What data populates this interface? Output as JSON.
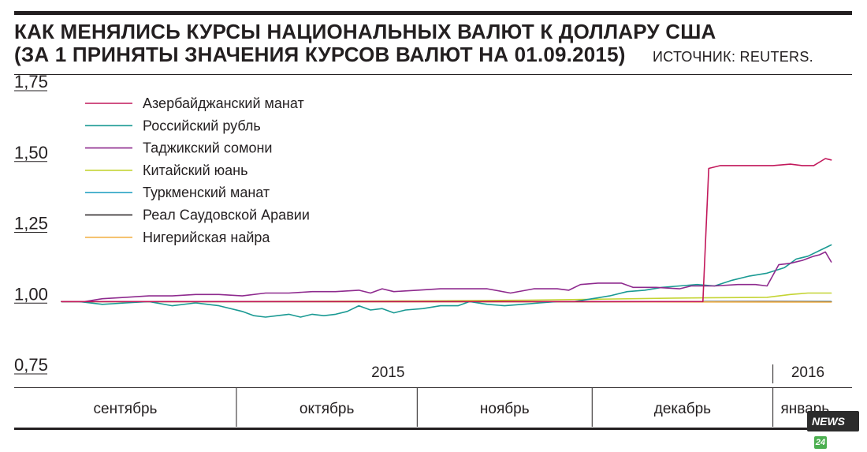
{
  "header": {
    "title_line1": "КАК МЕНЯЛИСЬ КУРСЫ НАЦИОНАЛЬНЫХ ВАЛЮТ К ДОЛЛАРУ США",
    "title_line2": "(ЗА 1 ПРИНЯТЫ ЗНАЧЕНИЯ КУРСОВ ВАЛЮТ НА 01.09.2015)",
    "source": "ИСТОЧНИК: REUTERS."
  },
  "brand": {
    "text": "NEWS",
    "mark": "24"
  },
  "chart_data": {
    "type": "line",
    "title": "КАК МЕНЯЛИСЬ КУРСЫ НАЦИОНАЛЬНЫХ ВАЛЮТ К ДОЛЛАРУ США",
    "subtitle": "(ЗА 1 ПРИНЯТЫ ЗНАЧЕНИЯ КУРСОВ ВАЛЮТ НА 01.09.2015)",
    "ylim": [
      0.75,
      1.75
    ],
    "y_ticks": [
      "1,75",
      "1,50",
      "1,25",
      "1,00",
      "0,75"
    ],
    "y_tick_values": [
      1.75,
      1.5,
      1.25,
      1.0,
      0.75
    ],
    "x_range": [
      "2015-09-01",
      "2016-01-12"
    ],
    "year_labels": [
      {
        "label": "2015",
        "date": "2015-10-27"
      },
      {
        "label": "2016",
        "date": "2016-01-07"
      }
    ],
    "year_divider_date": "2016-01-01",
    "months": [
      {
        "label": "сентябрь",
        "start": "2015-09-01",
        "end": "2015-10-01"
      },
      {
        "label": "октябрь",
        "start": "2015-10-01",
        "end": "2015-11-01"
      },
      {
        "label": "ноябрь",
        "start": "2015-11-01",
        "end": "2015-12-01"
      },
      {
        "label": "декабрь",
        "start": "2015-12-01",
        "end": "2016-01-01"
      },
      {
        "label": "январь",
        "start": "2016-01-01",
        "end": "2016-01-12"
      }
    ],
    "grid": false,
    "legend_position": "top-left",
    "series": [
      {
        "name": "Азербайджанский манат",
        "color": "#c2185b",
        "points": [
          [
            "2015-09-01",
            1.0
          ],
          [
            "2015-10-01",
            1.0
          ],
          [
            "2015-11-01",
            1.0
          ],
          [
            "2015-12-01",
            1.0
          ],
          [
            "2015-12-20",
            1.0
          ],
          [
            "2015-12-21",
            1.47
          ],
          [
            "2015-12-23",
            1.48
          ],
          [
            "2015-12-28",
            1.48
          ],
          [
            "2016-01-01",
            1.48
          ],
          [
            "2016-01-04",
            1.485
          ],
          [
            "2016-01-06",
            1.48
          ],
          [
            "2016-01-08",
            1.48
          ],
          [
            "2016-01-10",
            1.505
          ],
          [
            "2016-01-11",
            1.5
          ]
        ]
      },
      {
        "name": "Российский рубль",
        "color": "#1a9a93",
        "points": [
          [
            "2015-09-01",
            1.0
          ],
          [
            "2015-09-04",
            1.0
          ],
          [
            "2015-09-08",
            0.99
          ],
          [
            "2015-09-12",
            0.995
          ],
          [
            "2015-09-16",
            1.0
          ],
          [
            "2015-09-20",
            0.985
          ],
          [
            "2015-09-24",
            0.995
          ],
          [
            "2015-09-28",
            0.985
          ],
          [
            "2015-10-02",
            0.965
          ],
          [
            "2015-10-04",
            0.95
          ],
          [
            "2015-10-06",
            0.945
          ],
          [
            "2015-10-08",
            0.95
          ],
          [
            "2015-10-10",
            0.955
          ],
          [
            "2015-10-12",
            0.945
          ],
          [
            "2015-10-14",
            0.955
          ],
          [
            "2015-10-16",
            0.95
          ],
          [
            "2015-10-18",
            0.955
          ],
          [
            "2015-10-20",
            0.965
          ],
          [
            "2015-10-22",
            0.985
          ],
          [
            "2015-10-24",
            0.97
          ],
          [
            "2015-10-26",
            0.975
          ],
          [
            "2015-10-28",
            0.96
          ],
          [
            "2015-10-30",
            0.97
          ],
          [
            "2015-11-02",
            0.975
          ],
          [
            "2015-11-05",
            0.985
          ],
          [
            "2015-11-08",
            0.985
          ],
          [
            "2015-11-10",
            1.0
          ],
          [
            "2015-11-13",
            0.99
          ],
          [
            "2015-11-16",
            0.985
          ],
          [
            "2015-11-19",
            0.99
          ],
          [
            "2015-11-22",
            0.995
          ],
          [
            "2015-11-25",
            1.0
          ],
          [
            "2015-11-28",
            1.0
          ],
          [
            "2015-12-01",
            1.01
          ],
          [
            "2015-12-04",
            1.02
          ],
          [
            "2015-12-07",
            1.035
          ],
          [
            "2015-12-10",
            1.04
          ],
          [
            "2015-12-13",
            1.05
          ],
          [
            "2015-12-16",
            1.055
          ],
          [
            "2015-12-19",
            1.06
          ],
          [
            "2015-12-22",
            1.055
          ],
          [
            "2015-12-25",
            1.075
          ],
          [
            "2015-12-28",
            1.09
          ],
          [
            "2015-12-31",
            1.1
          ],
          [
            "2016-01-03",
            1.12
          ],
          [
            "2016-01-05",
            1.15
          ],
          [
            "2016-01-07",
            1.16
          ],
          [
            "2016-01-09",
            1.18
          ],
          [
            "2016-01-11",
            1.2
          ]
        ]
      },
      {
        "name": "Таджикский сомони",
        "color": "#8e2a8e",
        "points": [
          [
            "2015-09-01",
            1.0
          ],
          [
            "2015-09-05",
            1.0
          ],
          [
            "2015-09-08",
            1.01
          ],
          [
            "2015-09-12",
            1.015
          ],
          [
            "2015-09-16",
            1.02
          ],
          [
            "2015-09-20",
            1.02
          ],
          [
            "2015-09-24",
            1.025
          ],
          [
            "2015-09-28",
            1.025
          ],
          [
            "2015-10-02",
            1.02
          ],
          [
            "2015-10-06",
            1.03
          ],
          [
            "2015-10-10",
            1.03
          ],
          [
            "2015-10-14",
            1.035
          ],
          [
            "2015-10-18",
            1.035
          ],
          [
            "2015-10-22",
            1.04
          ],
          [
            "2015-10-24",
            1.03
          ],
          [
            "2015-10-26",
            1.045
          ],
          [
            "2015-10-28",
            1.035
          ],
          [
            "2015-11-01",
            1.04
          ],
          [
            "2015-11-05",
            1.045
          ],
          [
            "2015-11-09",
            1.045
          ],
          [
            "2015-11-13",
            1.045
          ],
          [
            "2015-11-17",
            1.03
          ],
          [
            "2015-11-21",
            1.045
          ],
          [
            "2015-11-25",
            1.045
          ],
          [
            "2015-11-27",
            1.04
          ],
          [
            "2015-11-29",
            1.06
          ],
          [
            "2015-12-02",
            1.065
          ],
          [
            "2015-12-06",
            1.065
          ],
          [
            "2015-12-08",
            1.05
          ],
          [
            "2015-12-12",
            1.05
          ],
          [
            "2015-12-16",
            1.045
          ],
          [
            "2015-12-18",
            1.055
          ],
          [
            "2015-12-22",
            1.055
          ],
          [
            "2015-12-26",
            1.06
          ],
          [
            "2015-12-29",
            1.06
          ],
          [
            "2015-12-31",
            1.055
          ],
          [
            "2016-01-02",
            1.13
          ],
          [
            "2016-01-04",
            1.135
          ],
          [
            "2016-01-06",
            1.145
          ],
          [
            "2016-01-08",
            1.16
          ],
          [
            "2016-01-09",
            1.165
          ],
          [
            "2016-01-10",
            1.175
          ],
          [
            "2016-01-11",
            1.14
          ]
        ]
      },
      {
        "name": "Китайский юань",
        "color": "#c4d433",
        "points": [
          [
            "2015-09-01",
            1.0
          ],
          [
            "2015-10-01",
            1.0
          ],
          [
            "2015-11-01",
            1.002
          ],
          [
            "2015-11-20",
            1.005
          ],
          [
            "2015-12-01",
            1.008
          ],
          [
            "2015-12-15",
            1.012
          ],
          [
            "2015-12-31",
            1.015
          ],
          [
            "2016-01-04",
            1.025
          ],
          [
            "2016-01-07",
            1.03
          ],
          [
            "2016-01-11",
            1.03
          ]
        ]
      },
      {
        "name": "Туркменский манат",
        "color": "#2aa3c4",
        "points": [
          [
            "2015-09-01",
            1.0
          ],
          [
            "2016-01-11",
            1.0
          ]
        ]
      },
      {
        "name": "Реал Саудовской Аравии",
        "color": "#231f20",
        "points": [
          [
            "2015-09-01",
            1.0
          ],
          [
            "2015-11-01",
            1.0
          ],
          [
            "2015-12-01",
            0.999
          ],
          [
            "2015-12-31",
            1.0
          ],
          [
            "2016-01-11",
            0.999
          ]
        ]
      },
      {
        "name": "Нигерийская найра",
        "color": "#f2b24a",
        "points": [
          [
            "2015-09-01",
            1.0
          ],
          [
            "2015-10-01",
            1.0
          ],
          [
            "2015-11-01",
            0.999
          ],
          [
            "2015-12-01",
            0.999
          ],
          [
            "2016-01-11",
            0.998
          ]
        ]
      }
    ]
  }
}
